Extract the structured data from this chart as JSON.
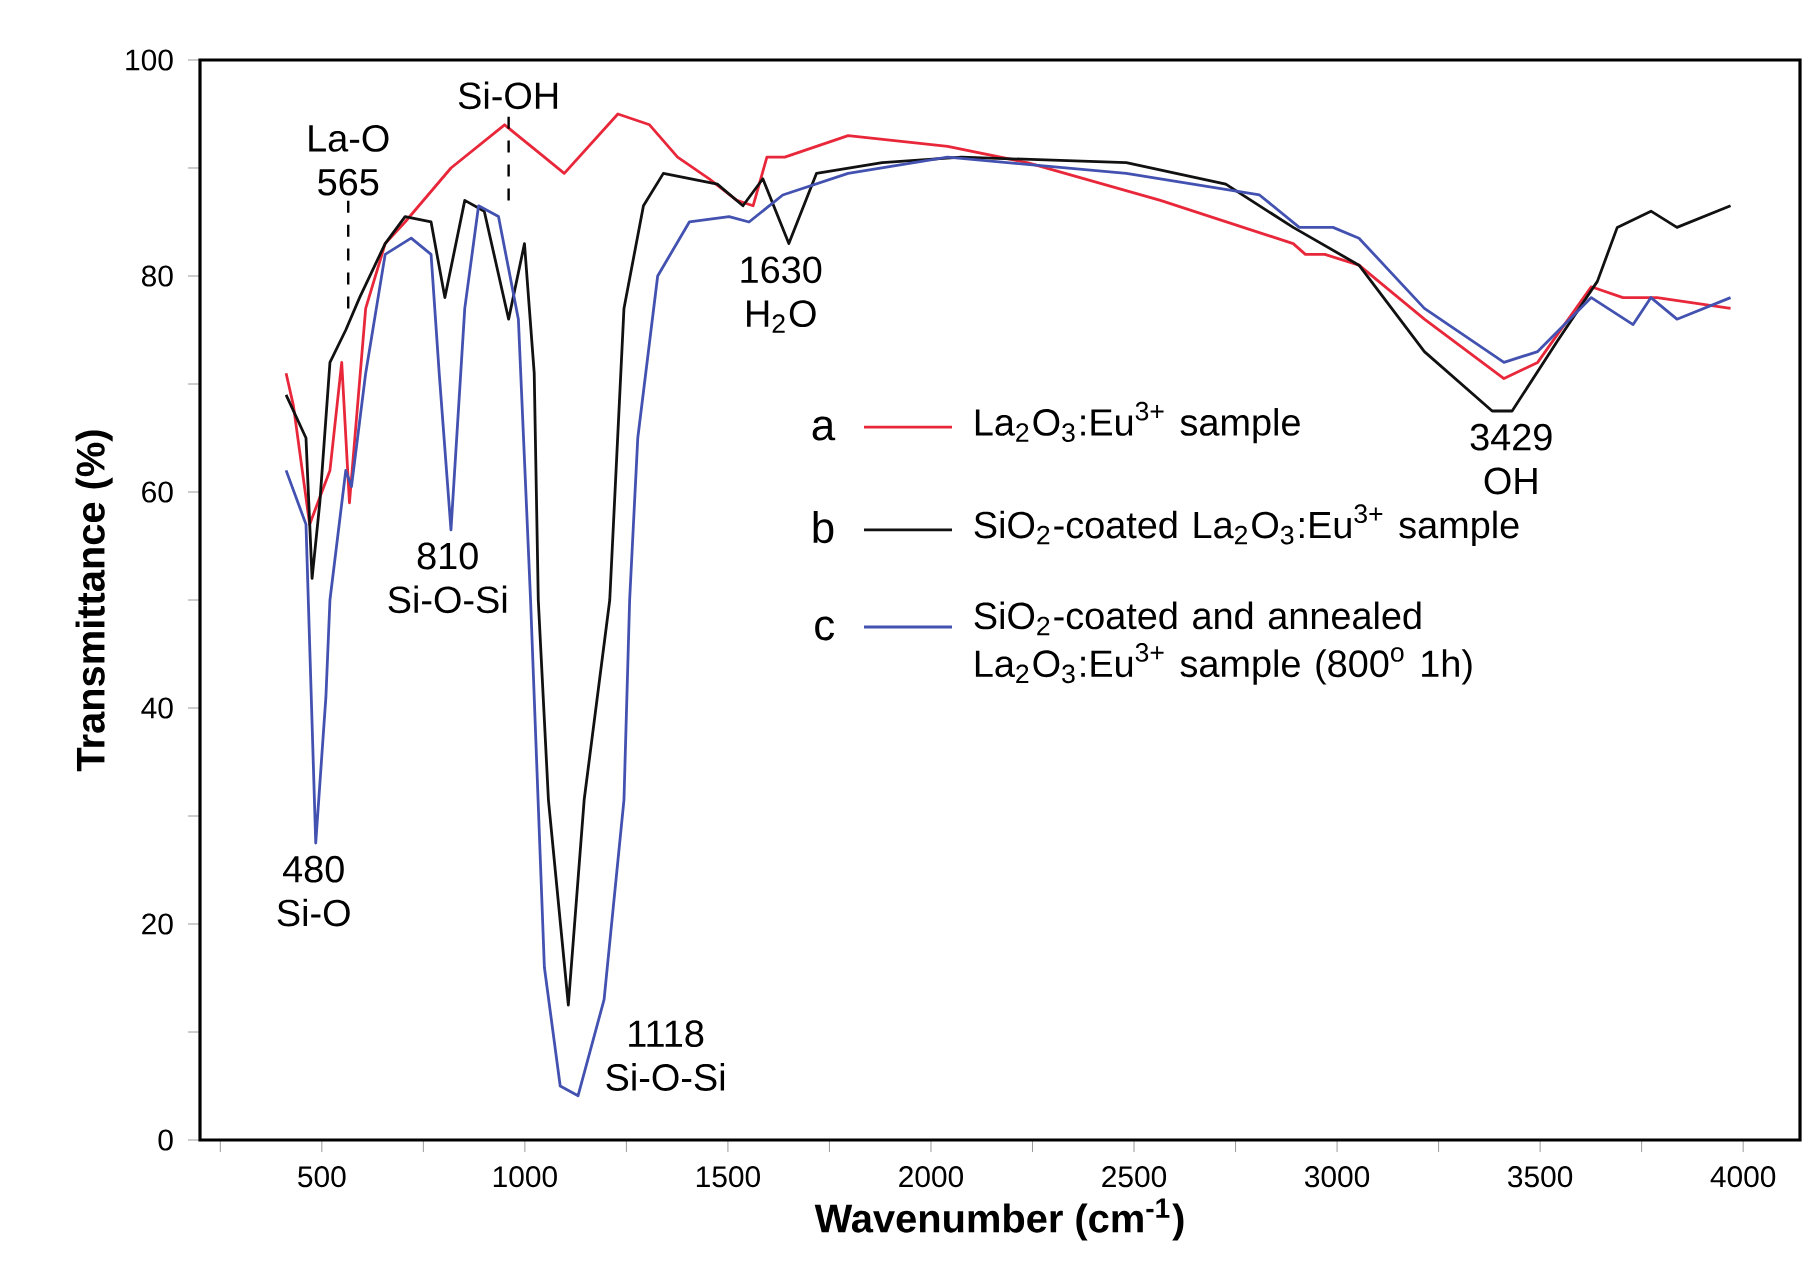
{
  "chart_data": {
    "type": "line",
    "xlabel": "Wavenumber (cm$^{-1}$)",
    "ylabel": "Transmittance (%)",
    "xlim": [
      200,
      4140
    ],
    "ylim": [
      0,
      100
    ],
    "xticks": [
      {
        "value": 250,
        "label": null
      },
      500,
      {
        "value": 750,
        "label": null
      },
      1000,
      {
        "value": 1250,
        "label": null
      },
      1500,
      {
        "value": 1750,
        "label": null
      },
      2000,
      {
        "value": 2250,
        "label": null
      },
      2500,
      {
        "value": 2750,
        "label": null
      },
      3000,
      {
        "value": 3250,
        "label": null
      },
      3500,
      {
        "value": 3750,
        "label": null
      },
      4000
    ],
    "yticks": [
      0,
      {
        "value": 10,
        "label": null
      },
      20,
      {
        "value": 30,
        "label": null
      },
      40,
      {
        "value": 50,
        "label": null
      },
      60,
      {
        "value": 70,
        "label": null
      },
      80,
      {
        "value": 90,
        "label": null
      },
      100
    ],
    "legend": "right",
    "series": [
      {
        "name": "La$_{2}$O$_{3}$:Eu$^{3+}$ sample",
        "color": "#e8283a",
        "x": [
          412,
          430,
          470,
          520,
          549,
          568,
          608,
          656,
          705,
          818,
          950,
          1048,
          1097,
          1229,
          1307,
          1376,
          1454,
          1522,
          1562,
          1596,
          1640,
          1796,
          2041,
          2237,
          2565,
          2892,
          2922,
          2970,
          3054,
          3215,
          3411,
          3494,
          3626,
          3704,
          3788,
          3969
        ],
        "values": [
          71,
          68,
          57,
          62,
          72,
          59,
          77,
          83,
          85,
          90,
          94,
          91,
          89.5,
          95,
          94,
          91,
          89,
          87,
          86.5,
          91,
          91,
          93,
          92,
          90.5,
          87,
          83,
          82,
          82,
          81,
          76,
          70.5,
          72,
          79,
          78,
          78,
          77
        ]
      },
      {
        "name": "SiO$_{2}$-coated La$_{2}$O$_{3}$:Eu$^{3+}$ sample",
        "color": "#111111",
        "x": [
          412,
          461,
          476,
          495,
          520,
          559,
          593,
          656,
          705,
          769,
          803,
          852,
          900,
          960,
          999,
          1023,
          1033,
          1058,
          1107,
          1146,
          1209,
          1244,
          1292,
          1341,
          1474,
          1537,
          1586,
          1650,
          1718,
          1880,
          2075,
          2481,
          2726,
          2892,
          3054,
          3215,
          3382,
          3431,
          3543,
          3641,
          3690,
          3773,
          3837,
          3969
        ],
        "values": [
          69,
          65,
          52,
          59,
          72,
          75,
          78,
          83,
          85.5,
          85,
          78,
          87,
          86,
          76,
          83,
          71,
          50,
          31.5,
          12.5,
          31.5,
          50,
          77,
          86.5,
          89.5,
          88.5,
          86.5,
          89,
          83,
          89.5,
          90.5,
          91,
          90.5,
          88.5,
          84.5,
          81,
          73,
          67.5,
          67.5,
          74,
          79.5,
          84.5,
          86,
          84.5,
          86.5
        ]
      },
      {
        "name": "SiO$_{2}$-coated and annealed La$_{2}$O$_{3}$:Eu$^{3+}$ sample (800$^{o}$ 1h)",
        "color": "#4352b0",
        "x": [
          412,
          461,
          485,
          510,
          520,
          559,
          573,
          608,
          656,
          720,
          769,
          789,
          818,
          852,
          886,
          935,
          984,
          1014,
          1048,
          1087,
          1131,
          1195,
          1244,
          1258,
          1278,
          1327,
          1405,
          1503,
          1552,
          1635,
          1796,
          2041,
          2481,
          2809,
          2907,
          2990,
          3054,
          3215,
          3411,
          3494,
          3626,
          3729,
          3773,
          3837,
          3969
        ],
        "values": [
          62,
          57,
          27.5,
          41,
          50,
          62,
          60.5,
          71,
          82,
          83.5,
          82,
          71,
          56.5,
          77,
          86.5,
          85.5,
          76,
          50,
          16,
          5,
          4.1,
          13,
          31.5,
          50,
          65,
          80,
          85,
          85.5,
          85,
          87.5,
          89.5,
          91,
          89.5,
          87.5,
          84.5,
          84.5,
          83.5,
          77,
          72,
          73,
          78,
          75.5,
          78,
          76,
          78
        ]
      }
    ],
    "annotations": [
      {
        "text": "La-O 565",
        "x": 565,
        "y": 77
      },
      "Si-OH",
      {
        "text": "810 Si-O-Si",
        "x": 810,
        "y": 56.5
      },
      {
        "text": "480 Si-O",
        "x": 480,
        "y": 27.5
      },
      {
        "text": "1118 Si-O-Si",
        "x": 1118,
        "y": 4.1
      },
      {
        "text": "1630 H$_{2}$O",
        "x": 1630,
        "y": 83
      },
      {
        "text": "3429 OH",
        "x": 3429,
        "y": 67.5
      },
      "a",
      "b",
      "c"
    ]
  }
}
